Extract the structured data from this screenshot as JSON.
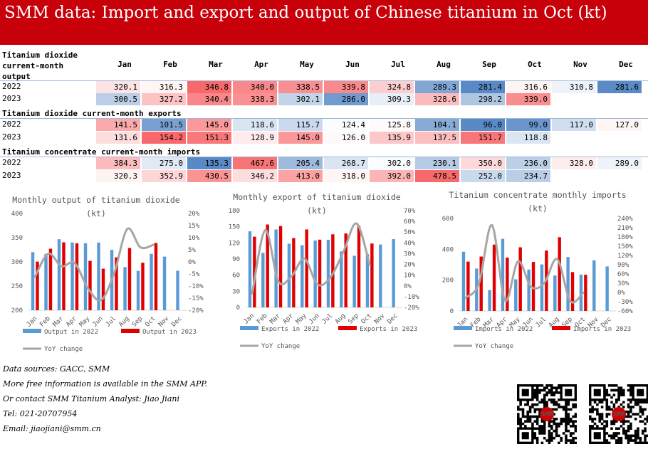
{
  "title": "SMM data: Import and export and output of Chinese titanium in Oct (kt)",
  "months": [
    "Jan",
    "Feb",
    "Mar",
    "Apr",
    "May",
    "Jun",
    "Jul",
    "Aug",
    "Sep",
    "Oct",
    "Nov",
    "Dec"
  ],
  "colors": {
    "header_red": "#c8000a",
    "bar2022": "#5b9bd5",
    "bar2023": "#e00000",
    "yoy": "#a6a6a6"
  },
  "sections": [
    {
      "title": "Titanium dioxide current-month output",
      "rows": [
        {
          "year": "2022",
          "values": [
            "320.1",
            "316.3",
            "346.8",
            "340.0",
            "338.5",
            "339.8",
            "324.8",
            "289.3",
            "281.4",
            "316.6",
            "310.8",
            "281.6"
          ]
        },
        {
          "year": "2023",
          "values": [
            "300.5",
            "327.2",
            "340.4",
            "338.3",
            "302.1",
            "286.0",
            "309.3",
            "328.6",
            "298.2",
            "339.0",
            "",
            ""
          ]
        }
      ]
    },
    {
      "title": "Titanium dioxide current-month exports",
      "rows": [
        {
          "year": "2022",
          "values": [
            "141.5",
            "101.5",
            "145.0",
            "118.6",
            "115.7",
            "124.4",
            "125.8",
            "104.1",
            "96.0",
            "99.0",
            "117.0",
            "127.0"
          ]
        },
        {
          "year": "2023",
          "values": [
            "131.6",
            "154.2",
            "151.3",
            "128.9",
            "145.0",
            "126.0",
            "135.9",
            "137.5",
            "151.7",
            "118.8",
            "",
            ""
          ]
        }
      ]
    },
    {
      "title": "Titanium concentrate current-month imports",
      "rows": [
        {
          "year": "2022",
          "values": [
            "384.3",
            "275.0",
            "135.3",
            "467.6",
            "205.4",
            "268.7",
            "302.0",
            "230.1",
            "350.0",
            "236.0",
            "328.0",
            "289.0"
          ]
        },
        {
          "year": "2023",
          "values": [
            "320.3",
            "352.9",
            "430.5",
            "346.2",
            "413.0",
            "318.0",
            "392.0",
            "478.5",
            "252.0",
            "234.7",
            "",
            ""
          ]
        }
      ]
    }
  ],
  "chart_data": [
    {
      "type": "bar",
      "title": "Monthly output of titanium dioxide (kt)",
      "categories": [
        "Jan",
        "Feb",
        "Mar",
        "Apr",
        "May",
        "Jun",
        "Jul",
        "Aug",
        "Sep",
        "Oct",
        "Nov",
        "Dec"
      ],
      "ylim": [
        200,
        400
      ],
      "y2lim": [
        -20,
        20
      ],
      "yticks": [
        "400",
        "350",
        "300",
        "250",
        "200"
      ],
      "y2ticks": [
        "20%",
        "15%",
        "10%",
        "5%",
        "0%",
        "-5%",
        "-10%",
        "-15%",
        "-20%"
      ],
      "series": [
        {
          "name": "Output in 2022",
          "values": [
            320.1,
            316.3,
            346.8,
            340.0,
            338.5,
            339.8,
            324.8,
            289.3,
            281.4,
            316.6,
            310.8,
            281.6
          ]
        },
        {
          "name": "Output in 2023",
          "values": [
            300.5,
            327.2,
            340.4,
            338.3,
            302.1,
            286.0,
            309.3,
            328.6,
            298.2,
            339.0,
            null,
            null
          ]
        },
        {
          "name": "YoY change",
          "values": [
            -6.1,
            3.4,
            -1.8,
            -0.5,
            -10.8,
            -15.8,
            -4.8,
            13.6,
            6.0,
            7.1,
            null,
            null
          ]
        }
      ],
      "legend": [
        "Output in 2022",
        "Output in 2023",
        "YoY change"
      ]
    },
    {
      "type": "bar",
      "title": "Monthly export of titanium dioxide (kt)",
      "categories": [
        "Jan",
        "Feb",
        "Mar",
        "Apr",
        "May",
        "Jun",
        "Jul",
        "Aug",
        "Sep",
        "Oct",
        "Nov",
        "Dec"
      ],
      "ylim": [
        0,
        180
      ],
      "y2lim": [
        -20,
        70
      ],
      "yticks": [
        "180",
        "150",
        "120",
        "90",
        "60",
        "30",
        "0"
      ],
      "y2ticks": [
        "70%",
        "60%",
        "50%",
        "40%",
        "30%",
        "20%",
        "10%",
        "0%",
        "-10%",
        "-20%"
      ],
      "series": [
        {
          "name": "Exports in 2022",
          "values": [
            141.5,
            101.5,
            145.0,
            118.6,
            115.7,
            124.4,
            125.8,
            104.1,
            96.0,
            99.0,
            117.0,
            127.0
          ]
        },
        {
          "name": "Exports in 2023",
          "values": [
            131.6,
            154.2,
            151.3,
            128.9,
            145.0,
            126.0,
            135.9,
            137.5,
            151.7,
            118.8,
            null,
            null
          ]
        },
        {
          "name": "YoY change",
          "values": [
            -7.0,
            51.9,
            4.3,
            8.7,
            25.3,
            1.3,
            8.0,
            32.1,
            58.0,
            20.0,
            null,
            null
          ]
        }
      ],
      "legend": [
        "Exports in 2022",
        "Exports in 2023",
        "YoY change"
      ]
    },
    {
      "type": "bar",
      "title": "Titanium concentrate monthly imports (kt)",
      "categories": [
        "Jan",
        "Feb",
        "Mar",
        "Apr",
        "May",
        "Jun",
        "Jul",
        "Aug",
        "Sep",
        "Oct",
        "Nov",
        "Dec"
      ],
      "ylim": [
        0,
        600
      ],
      "y2lim": [
        -60,
        240
      ],
      "yticks": [
        "600",
        "400",
        "200",
        "0"
      ],
      "y2ticks": [
        "240%",
        "210%",
        "180%",
        "150%",
        "120%",
        "90%",
        "60%",
        "30%",
        "0%",
        "-30%",
        "-60%"
      ],
      "series": [
        {
          "name": "Imports in 2022",
          "values": [
            384.3,
            275.0,
            135.3,
            467.6,
            205.4,
            268.7,
            302.0,
            230.1,
            350.0,
            236.0,
            328.0,
            289.0
          ]
        },
        {
          "name": "Imports in 2023",
          "values": [
            320.3,
            352.9,
            430.5,
            346.2,
            413.0,
            318.0,
            392.0,
            478.5,
            252.0,
            234.7,
            null,
            null
          ]
        },
        {
          "name": "YoY change",
          "values": [
            -16.7,
            28.3,
            218.2,
            -26.0,
            101.1,
            18.3,
            29.8,
            108.0,
            -28.0,
            -0.6,
            null,
            null
          ]
        }
      ],
      "legend": [
        "Imports in 2022",
        "Imports in 2023",
        "YoY change"
      ]
    }
  ],
  "footer": {
    "sources": "Data sources: GACC, SMM",
    "line2": "More free information is available in the SMM APP.",
    "line3": "Or contact SMM Titanium Analyst: Jiao Jiani",
    "tel": "Tel: 021-20707954",
    "email": "Email: jiaojiani@smm.cn",
    "qr_label": "SMM"
  }
}
